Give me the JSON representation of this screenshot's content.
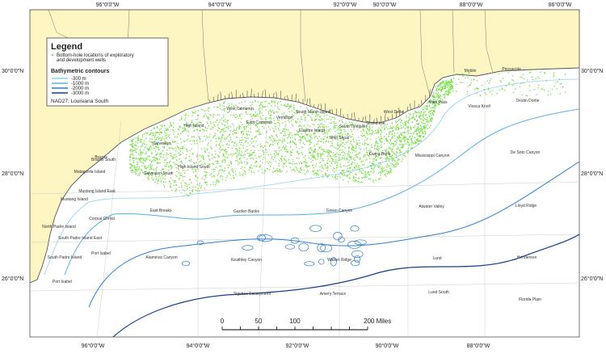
{
  "map": {
    "longitude_labels_top": [
      "96°0'0\"W",
      "94°0'0\"W",
      "92°0'0\"W",
      "90°0'0\"W",
      "88°0'0\"W",
      "86°0'0\"W"
    ],
    "longitude_labels_bottom": [
      "96°0'0\"W",
      "94°0'0\"W",
      "92°0'0\"W",
      "90°0'0\"W",
      "88°0'0\"W"
    ],
    "latitude_labels_left": [
      "30°0'0\"N",
      "28°0'0\"N",
      "26°0'0\"N"
    ],
    "latitude_labels_right": [
      "30°0'0\"N",
      "28°0'0\"N",
      "26°0'0\"N"
    ],
    "legend": {
      "title": "Legend",
      "wells": [
        "Bottom-hole locations of exploratory",
        "and development wells"
      ],
      "bathymetry_title": "Bathymetric contours",
      "contours": [
        "-300 m",
        "-1000 m",
        "-2000 m",
        "-3000 m"
      ],
      "datum": "NAD27, Louisiana South"
    },
    "area_labels": [
      "Galveston",
      "Brazos",
      "High Island",
      "West Cameron",
      "East Cameron",
      "Vermilion",
      "South Marsh Island",
      "Eugene Island",
      "Ship Shoal",
      "South Timbalier",
      "Grand Isle",
      "West Delta",
      "Main Pass",
      "Viosca Knoll",
      "Mobile",
      "Pensacola",
      "Destin Dome",
      "De Soto Canyon",
      "Mississippi Canyon",
      "Ewing Bank",
      "Matagorda Island",
      "Brazos South",
      "Galveston South",
      "High Island South",
      "Mustang Island",
      "Mustang Island East",
      "North Padre Island",
      "Corpus Christi",
      "South Padre Island",
      "South Padre Island East",
      "Port Isabel",
      "Port Isabel",
      "East Breaks",
      "Garden Banks",
      "Green Canyon",
      "Atwater Valley",
      "Lloyd Ridge",
      "Alaminos Canyon",
      "Keathley Canyon",
      "Walker Ridge",
      "Lund",
      "Henderson",
      "Sigsbee Escarpment",
      "Amery Terrace",
      "Lund South",
      "Florida Plain"
    ],
    "scale_bar": [
      "0",
      "50",
      "100",
      "200 Miles"
    ]
  }
}
